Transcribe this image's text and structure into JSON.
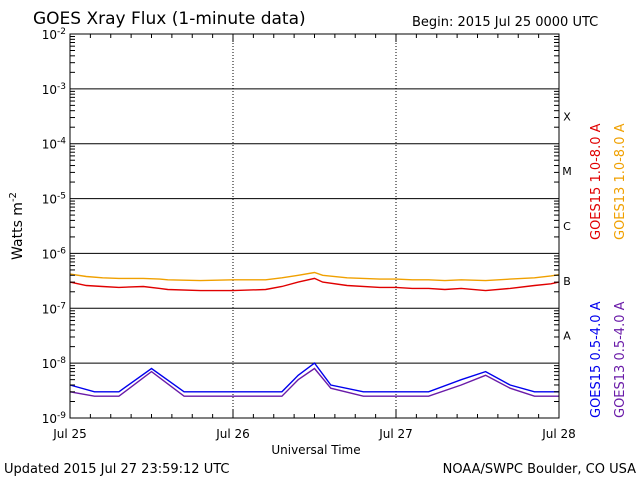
{
  "title": "GOES Xray Flux (1-minute data)",
  "begin_label": "Begin:  2015 Jul 25 0000 UTC",
  "updated_label": "Updated 2015 Jul 27 23:59:12 UTC",
  "credit_label": "NOAA/SWPC Boulder, CO USA",
  "chart_data": {
    "type": "line",
    "title": "GOES Xray Flux (1-minute data)",
    "xlabel": "Universal Time",
    "ylabel": "Watts m",
    "ylabel_superscript": "-2",
    "y_scale": "log",
    "ylim": [
      1e-09,
      0.01
    ],
    "y_ticks": [
      {
        "base": "10",
        "exp": "-9"
      },
      {
        "base": "10",
        "exp": "-8"
      },
      {
        "base": "10",
        "exp": "-7"
      },
      {
        "base": "10",
        "exp": "-6"
      },
      {
        "base": "10",
        "exp": "-5"
      },
      {
        "base": "10",
        "exp": "-4"
      },
      {
        "base": "10",
        "exp": "-3"
      },
      {
        "base": "10",
        "exp": "-2"
      }
    ],
    "xlim": [
      "2015-07-25 00:00",
      "2015-07-28 00:00"
    ],
    "x_ticks": [
      "Jul 25",
      "Jul 26",
      "Jul 27",
      "Jul 28"
    ],
    "flare_classes": [
      {
        "label": "A",
        "flux": 1e-08
      },
      {
        "label": "B",
        "flux": 1e-07
      },
      {
        "label": "C",
        "flux": 1e-06
      },
      {
        "label": "M",
        "flux": 1e-05
      },
      {
        "label": "X",
        "flux": 0.0001
      }
    ],
    "grid": true,
    "legend_position": "right",
    "series": [
      {
        "name": "GOES15 1.0-8.0 A",
        "color": "#e00000",
        "x_days": [
          0,
          0.1,
          0.2,
          0.3,
          0.45,
          0.55,
          0.6,
          0.8,
          1.0,
          1.2,
          1.3,
          1.4,
          1.5,
          1.55,
          1.7,
          1.9,
          2.0,
          2.1,
          2.2,
          2.3,
          2.4,
          2.55,
          2.7,
          2.85,
          2.95,
          3.0
        ],
        "y": [
          3e-07,
          2.6e-07,
          2.5e-07,
          2.4e-07,
          2.5e-07,
          2.3e-07,
          2.2e-07,
          2.1e-07,
          2.1e-07,
          2.2e-07,
          2.5e-07,
          3e-07,
          3.5e-07,
          3e-07,
          2.6e-07,
          2.4e-07,
          2.4e-07,
          2.3e-07,
          2.3e-07,
          2.2e-07,
          2.3e-07,
          2.1e-07,
          2.3e-07,
          2.6e-07,
          2.8e-07,
          3e-07
        ]
      },
      {
        "name": "GOES13 1.0-8.0 A",
        "color": "#f0a000",
        "x_days": [
          0,
          0.1,
          0.2,
          0.3,
          0.45,
          0.55,
          0.6,
          0.8,
          1.0,
          1.2,
          1.3,
          1.4,
          1.5,
          1.55,
          1.7,
          1.9,
          2.0,
          2.1,
          2.2,
          2.3,
          2.4,
          2.55,
          2.7,
          2.85,
          2.95,
          3.0
        ],
        "y": [
          4.2e-07,
          3.8e-07,
          3.6e-07,
          3.5e-07,
          3.5e-07,
          3.4e-07,
          3.3e-07,
          3.2e-07,
          3.3e-07,
          3.3e-07,
          3.6e-07,
          4e-07,
          4.5e-07,
          4e-07,
          3.6e-07,
          3.4e-07,
          3.4e-07,
          3.3e-07,
          3.3e-07,
          3.2e-07,
          3.3e-07,
          3.2e-07,
          3.4e-07,
          3.6e-07,
          3.9e-07,
          4.1e-07
        ]
      },
      {
        "name": "GOES15 0.5-4.0 A",
        "color": "#0000ee",
        "x_days": [
          0,
          0.15,
          0.3,
          0.5,
          0.7,
          0.9,
          1.1,
          1.3,
          1.4,
          1.5,
          1.6,
          1.8,
          2.0,
          2.2,
          2.4,
          2.55,
          2.7,
          2.85,
          3.0
        ],
        "y": [
          4e-09,
          3e-09,
          3e-09,
          8e-09,
          3e-09,
          3e-09,
          3e-09,
          3e-09,
          6e-09,
          1e-08,
          4e-09,
          3e-09,
          3e-09,
          3e-09,
          5e-09,
          7e-09,
          4e-09,
          3e-09,
          3e-09
        ]
      },
      {
        "name": "GOES13 0.5-4.0 A",
        "color": "#6a1ba8",
        "x_days": [
          0,
          0.15,
          0.3,
          0.5,
          0.7,
          0.9,
          1.1,
          1.3,
          1.4,
          1.5,
          1.6,
          1.8,
          2.0,
          2.2,
          2.4,
          2.55,
          2.7,
          2.85,
          3.0
        ],
        "y": [
          3e-09,
          2.5e-09,
          2.5e-09,
          7e-09,
          2.5e-09,
          2.5e-09,
          2.5e-09,
          2.5e-09,
          5e-09,
          8e-09,
          3.5e-09,
          2.5e-09,
          2.5e-09,
          2.5e-09,
          4e-09,
          6e-09,
          3.5e-09,
          2.5e-09,
          2.5e-09
        ]
      }
    ]
  }
}
